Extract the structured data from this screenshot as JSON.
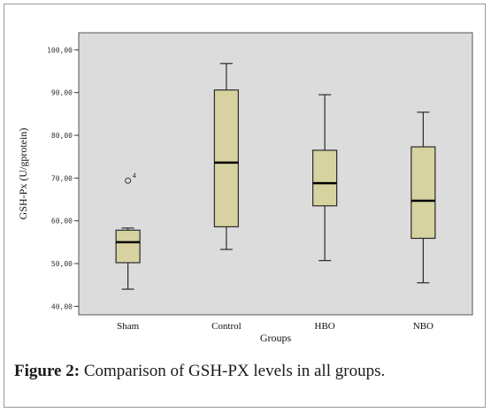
{
  "caption": {
    "label": "Figure 2:",
    "text": " Comparison of GSH-PX levels in all groups."
  },
  "chart_data": {
    "type": "boxplot",
    "xlabel": "Groups",
    "ylabel": "GSH-Px (U/gprotein)",
    "ylim": [
      38,
      104
    ],
    "yticks": [
      40,
      50,
      60,
      70,
      80,
      90,
      100
    ],
    "ytick_labels": [
      "40,00",
      "50,00",
      "60,00",
      "70,00",
      "80,00",
      "90,00",
      "100,00"
    ],
    "grid": false,
    "categories": [
      "Sham",
      "Control",
      "HBO",
      "NBO"
    ],
    "boxes": [
      {
        "min": 44.0,
        "q1": 50.2,
        "median": 55.0,
        "q3": 57.8,
        "max": 58.3,
        "outliers": [
          {
            "value": 69.4,
            "label": "4"
          }
        ]
      },
      {
        "min": 53.3,
        "q1": 58.6,
        "median": 73.6,
        "q3": 90.6,
        "max": 96.8,
        "outliers": []
      },
      {
        "min": 50.7,
        "q1": 63.5,
        "median": 68.8,
        "q3": 76.5,
        "max": 89.5,
        "outliers": []
      },
      {
        "min": 45.5,
        "q1": 55.9,
        "median": 64.7,
        "q3": 77.3,
        "max": 85.4,
        "outliers": []
      }
    ],
    "colors": {
      "plot_bg": "#dcdcdc",
      "box_fill": "#d6d3a0",
      "box_stroke": "#2a2a2a"
    }
  }
}
